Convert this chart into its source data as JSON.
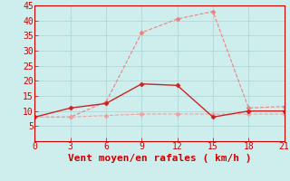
{
  "xlabel": "Vent moyen/en rafales ( km/h )",
  "xlim": [
    0,
    21
  ],
  "ylim": [
    0,
    45
  ],
  "xticks": [
    0,
    3,
    6,
    9,
    12,
    15,
    18,
    21
  ],
  "yticks": [
    5,
    10,
    15,
    20,
    25,
    30,
    35,
    40,
    45
  ],
  "bg_color": "#cdeeed",
  "line1_x": [
    0,
    3,
    6,
    9,
    12,
    15,
    18,
    21
  ],
  "line1_y": [
    8,
    8,
    13,
    36,
    40.5,
    43,
    11,
    11.5
  ],
  "line1_color": "#f08080",
  "line2_x": [
    0,
    3,
    6,
    9,
    12,
    15,
    18,
    21
  ],
  "line2_y": [
    8,
    11,
    12.5,
    19,
    18.5,
    8,
    10,
    10
  ],
  "line2_color": "#cc2222",
  "line3_x": [
    0,
    3,
    6,
    9,
    12,
    15,
    18,
    21
  ],
  "line3_y": [
    8,
    8,
    8.5,
    9,
    9,
    9,
    9,
    9
  ],
  "line3_color": "#f0a0a0",
  "marker": "D",
  "marker_size": 2.5,
  "font_color": "#cc0000",
  "grid_color": "#b0d8d8",
  "xlabel_fontsize": 8,
  "tick_fontsize": 7
}
